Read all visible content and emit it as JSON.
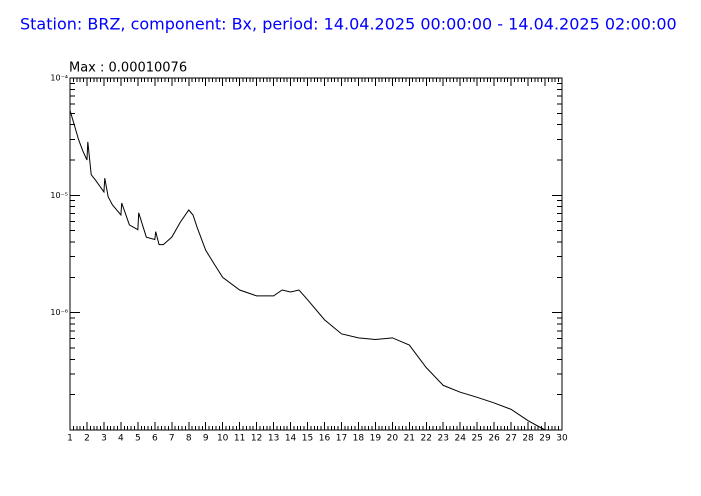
{
  "chart_data": {
    "type": "line",
    "title": "Station: BRZ, component: Bx, period: 14.04.2025 00:00:00 - 14.04.2025 02:00:00",
    "annotation": "Max : 0.00010076",
    "x": [
      1,
      1.25,
      1.5,
      1.75,
      2,
      2.05,
      2.25,
      2.5,
      3,
      3.05,
      3.25,
      3.5,
      4,
      4.05,
      4.5,
      5,
      5.05,
      5.5,
      6,
      6.05,
      6.25,
      6.5,
      7,
      7.5,
      8,
      8.25,
      8.5,
      9,
      9.5,
      10,
      11,
      12,
      13,
      13.5,
      14,
      14.5,
      15,
      16,
      17,
      18,
      19,
      20,
      21,
      22,
      23,
      24,
      25,
      26,
      27,
      28,
      29
    ],
    "values": [
      5.3e-05,
      4e-05,
      3e-05,
      2.4e-05,
      2e-05,
      2.85e-05,
      1.5e-05,
      1.35e-05,
      1.07e-05,
      1.4e-05,
      9.7e-06,
      8.3e-06,
      6.8e-06,
      8.6e-06,
      5.6e-06,
      5.1e-06,
      7.1e-06,
      4.4e-06,
      4.2e-06,
      4.9e-06,
      3.8e-06,
      3.8e-06,
      4.4e-06,
      5.9e-06,
      7.5e-06,
      6.8e-06,
      5.3e-06,
      3.4e-06,
      2.6e-06,
      2e-06,
      1.56e-06,
      1.39e-06,
      1.39e-06,
      1.56e-06,
      1.5e-06,
      1.56e-06,
      1.29e-06,
      8.7e-07,
      6.6e-07,
      6.1e-07,
      5.9e-07,
      6.1e-07,
      5.3e-07,
      3.4e-07,
      2.4e-07,
      2.1e-07,
      1.9e-07,
      1.7e-07,
      1.5e-07,
      1.2e-07,
      1e-07
    ],
    "color": "#000000",
    "title_color": "#0000ff",
    "xlim": [
      1,
      30
    ],
    "xticks": [
      1,
      2,
      3,
      4,
      5,
      6,
      7,
      8,
      9,
      10,
      11,
      12,
      13,
      14,
      15,
      16,
      17,
      18,
      19,
      20,
      21,
      22,
      23,
      24,
      25,
      26,
      27,
      28,
      29,
      30
    ],
    "ylim": [
      1e-07,
      0.0001
    ],
    "yticks": [
      {
        "value": 1e-06,
        "label": "10⁻⁶"
      },
      {
        "value": 1e-05,
        "label": "10⁻⁵"
      },
      {
        "value": 0.0001,
        "label": "10⁻⁴"
      }
    ],
    "ylog": true
  }
}
